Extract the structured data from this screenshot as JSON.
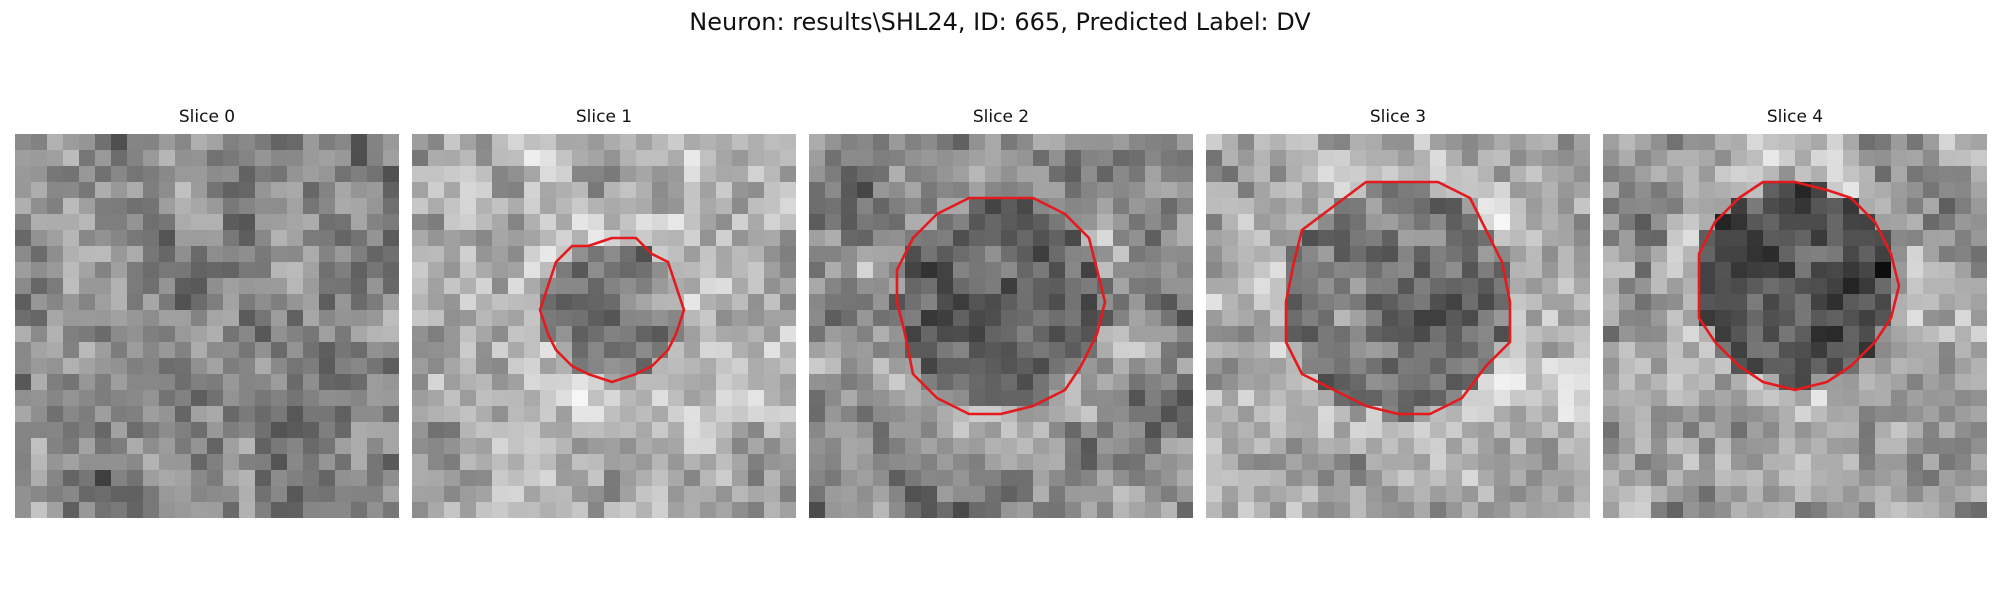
{
  "figure": {
    "title": "Neuron: results\\SHL24, ID: 665, Predicted Label: DV"
  },
  "panels": [
    {
      "title": "Slice 0",
      "has_contour": false
    },
    {
      "title": "Slice 1",
      "has_contour": true
    },
    {
      "title": "Slice 2",
      "has_contour": true
    },
    {
      "title": "Slice 3",
      "has_contour": true
    },
    {
      "title": "Slice 4",
      "has_contour": true
    }
  ],
  "colors": {
    "contour": "#e41a1c",
    "background": "#ffffff"
  },
  "image": {
    "colormap": "grayscale",
    "grid_cells": 24
  }
}
